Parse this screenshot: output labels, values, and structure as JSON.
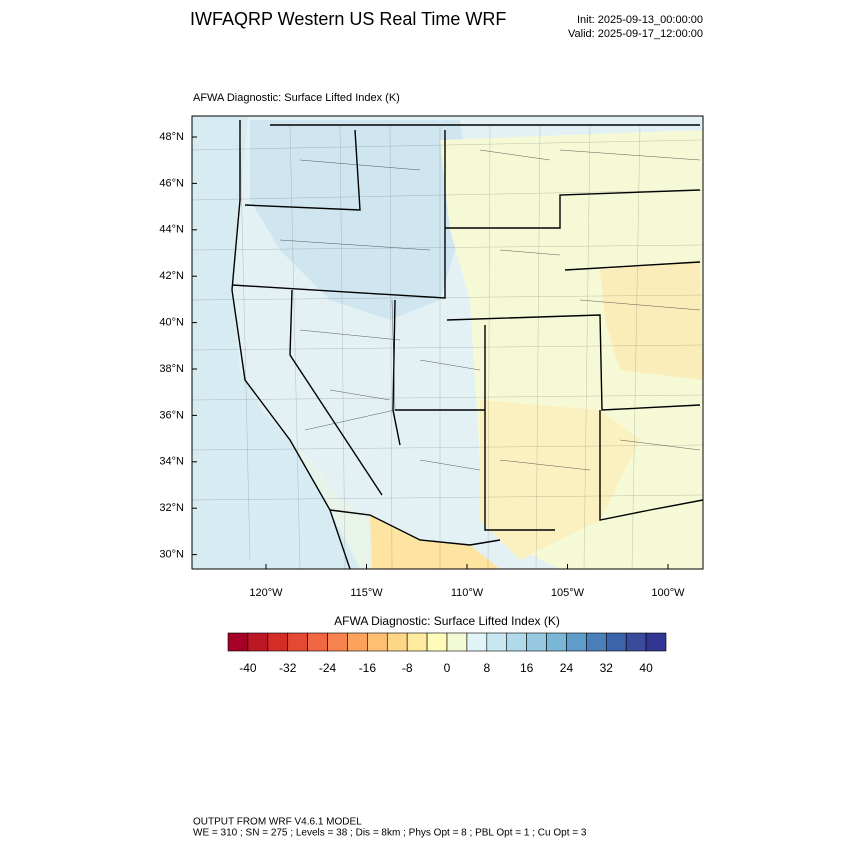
{
  "header": {
    "title": "IWFAQRP Western US Real Time WRF",
    "init": "Init: 2025-09-13_00:00:00",
    "valid": "Valid: 2025-09-17_12:00:00"
  },
  "map": {
    "title": "AFWA Diagnostic: Surface Lifted Index   (K)",
    "lat_labels": [
      "48°N",
      "46°N",
      "44°N",
      "42°N",
      "40°N",
      "38°N",
      "36°N",
      "34°N",
      "32°N",
      "30°N"
    ],
    "lon_labels": [
      "120°W",
      "115°W",
      "110°W",
      "105°W",
      "100°W"
    ]
  },
  "colorbar": {
    "title": "AFWA Diagnostic: Surface Lifted Index  (K)",
    "colors": [
      "#a50026",
      "#bd1726",
      "#d42d27",
      "#e34933",
      "#f06744",
      "#f7844e",
      "#fba35c",
      "#fdbf71",
      "#fed687",
      "#feeb9d",
      "#fffbb9",
      "#f2fad6",
      "#e0f3f7",
      "#c9e7f1",
      "#b0daea",
      "#96c9e0",
      "#7ab6d6",
      "#609cc9",
      "#4a7fb9",
      "#3c64aa",
      "#3a4b9c",
      "#313695"
    ],
    "ticks": [
      -40,
      -32,
      -24,
      -16,
      -8,
      0,
      8,
      16,
      24,
      32,
      40
    ]
  },
  "footer": {
    "line1": "OUTPUT FROM WRF V4.6.1 MODEL",
    "line2": "WE = 310 ; SN = 275 ; Levels = 38 ; Dis = 8km ; Phys Opt = 8 ; PBL Opt = 1 ; Cu Opt = 3"
  }
}
